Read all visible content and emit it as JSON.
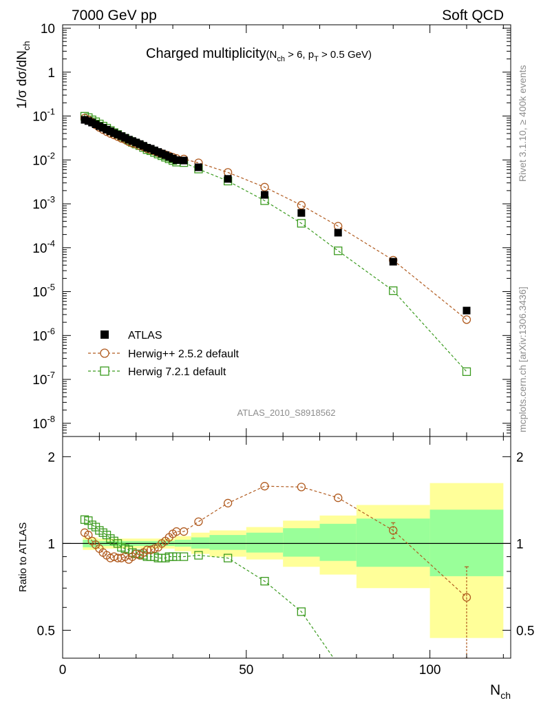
{
  "header": {
    "left_label": "7000 GeV pp",
    "right_label": "Soft QCD",
    "analysis_tag": "ATLAS_2010_S8918562",
    "side_text_top": "Rivet 3.1.10, ≥ 400k events",
    "side_text_bottom": "mcplots.cern.ch [arXiv:1306.3436]"
  },
  "chart_data": [
    {
      "type": "scatter",
      "title_main": "Charged multiplicity",
      "title_cut": "(N",
      "title_cut_sub": "ch",
      "title_cut_rest": " > 6, p",
      "title_cut_sub2": "T",
      "title_cut_end": " > 0.5 GeV)",
      "ylabel": "1/σ dσ/dN",
      "ylabel_sub": "ch",
      "yscale": "log",
      "ylim": [
        5e-09,
        12
      ],
      "xlim": [
        0,
        122
      ],
      "y_ticks": [
        {
          "base": "10",
          "exp": "-8",
          "value": 1e-08
        },
        {
          "base": "10",
          "exp": "-7",
          "value": 1e-07
        },
        {
          "base": "10",
          "exp": "-6",
          "value": 1e-06
        },
        {
          "base": "10",
          "exp": "-5",
          "value": 1e-05
        },
        {
          "base": "10",
          "exp": "-4",
          "value": 0.0001
        },
        {
          "base": "10",
          "exp": "-3",
          "value": 0.001
        },
        {
          "base": "10",
          "exp": "-2",
          "value": 0.01
        },
        {
          "base": "10",
          "exp": "-1",
          "value": 0.1
        },
        {
          "base": "1",
          "exp": "",
          "value": 1
        },
        {
          "base": "10",
          "exp": "",
          "value": 10
        }
      ],
      "legend_position": "lower-left",
      "series": [
        {
          "name": "ATLAS",
          "marker": "filled-square",
          "color": "#000000",
          "x": [
            6,
            7,
            8,
            9,
            10,
            11,
            12,
            13,
            14,
            15,
            16,
            17,
            18,
            19,
            20,
            21,
            22,
            23,
            24,
            25,
            26,
            27,
            28,
            29,
            30,
            31,
            33,
            37,
            45,
            55,
            65,
            75,
            90,
            110
          ],
          "y": [
            0.082,
            0.077,
            0.071,
            0.065,
            0.059,
            0.054,
            0.049,
            0.045,
            0.041,
            0.038,
            0.035,
            0.032,
            0.029,
            0.027,
            0.025,
            0.023,
            0.021,
            0.019,
            0.018,
            0.0165,
            0.0152,
            0.014,
            0.0129,
            0.0118,
            0.0108,
            0.0099,
            0.0097,
            0.0068,
            0.0037,
            0.0016,
            0.00062,
            0.00022,
            4.8e-05,
            3.7e-06
          ]
        },
        {
          "name": "Herwig++ 2.5.2 default",
          "marker": "open-circle",
          "color": "#b05a1e",
          "x": [
            6,
            7,
            8,
            9,
            10,
            11,
            12,
            13,
            14,
            15,
            16,
            17,
            18,
            19,
            20,
            21,
            22,
            23,
            24,
            25,
            26,
            27,
            28,
            29,
            30,
            31,
            33,
            37,
            45,
            55,
            65,
            75,
            90,
            110
          ],
          "y": [
            0.09,
            0.082,
            0.072,
            0.063,
            0.055,
            0.049,
            0.044,
            0.04,
            0.037,
            0.034,
            0.031,
            0.029,
            0.026,
            0.024,
            0.023,
            0.021,
            0.02,
            0.018,
            0.017,
            0.016,
            0.0148,
            0.014,
            0.0131,
            0.0123,
            0.0115,
            0.0108,
            0.0105,
            0.0086,
            0.0052,
            0.0024,
            0.00093,
            0.00031,
            5.2e-05,
            2.3e-06
          ]
        },
        {
          "name": "Herwig 7.2.1 default",
          "marker": "open-square",
          "color": "#3a9a1e",
          "x": [
            6,
            7,
            8,
            9,
            10,
            11,
            12,
            13,
            14,
            15,
            16,
            17,
            18,
            19,
            20,
            21,
            22,
            23,
            24,
            25,
            26,
            27,
            28,
            29,
            30,
            31,
            33,
            37,
            45,
            55,
            65,
            75,
            90,
            110
          ],
          "y": [
            0.099,
            0.092,
            0.082,
            0.074,
            0.066,
            0.059,
            0.053,
            0.047,
            0.042,
            0.038,
            0.034,
            0.031,
            0.028,
            0.025,
            0.023,
            0.0212,
            0.0192,
            0.0172,
            0.0162,
            0.0148,
            0.0136,
            0.0125,
            0.0115,
            0.0106,
            0.0097,
            0.0089,
            0.0087,
            0.0062,
            0.0033,
            0.00118,
            0.00036,
            8.5e-05,
            1.05e-05,
            1.5e-07
          ]
        }
      ]
    },
    {
      "type": "scatter",
      "ylabel": "Ratio to ATLAS",
      "yscale": "log",
      "ylim": [
        0.4,
        2.35
      ],
      "xlim": [
        0,
        122
      ],
      "xlabel": "N",
      "xlabel_sub": "ch",
      "x_ticks": [
        {
          "label": "0",
          "value": 0
        },
        {
          "label": "50",
          "value": 50
        },
        {
          "label": "100",
          "value": 100
        }
      ],
      "y_ticks": [
        {
          "label": "0.5",
          "value": 0.5
        },
        {
          "label": "1",
          "value": 1
        },
        {
          "label": "2",
          "value": 2
        }
      ],
      "uncertainty_bands": [
        {
          "x0": 5.5,
          "x1": 9.5,
          "inner": [
            0.97,
            1.03
          ],
          "outer": [
            0.95,
            1.05
          ]
        },
        {
          "x0": 9.5,
          "x1": 30.5,
          "inner": [
            0.98,
            1.02
          ],
          "outer": [
            0.96,
            1.04
          ]
        },
        {
          "x0": 30.5,
          "x1": 35,
          "inner": [
            0.975,
            1.03
          ],
          "outer": [
            0.94,
            1.06
          ]
        },
        {
          "x0": 35,
          "x1": 40,
          "inner": [
            0.96,
            1.05
          ],
          "outer": [
            0.92,
            1.09
          ]
        },
        {
          "x0": 40,
          "x1": 50,
          "inner": [
            0.95,
            1.07
          ],
          "outer": [
            0.9,
            1.11
          ]
        },
        {
          "x0": 50,
          "x1": 60,
          "inner": [
            0.93,
            1.09
          ],
          "outer": [
            0.88,
            1.14
          ]
        },
        {
          "x0": 60,
          "x1": 70,
          "inner": [
            0.9,
            1.13
          ],
          "outer": [
            0.83,
            1.2
          ]
        },
        {
          "x0": 70,
          "x1": 80,
          "inner": [
            0.87,
            1.17
          ],
          "outer": [
            0.78,
            1.25
          ]
        },
        {
          "x0": 80,
          "x1": 100,
          "inner": [
            0.83,
            1.22
          ],
          "outer": [
            0.7,
            1.36
          ]
        },
        {
          "x0": 100,
          "x1": 120,
          "inner": [
            0.77,
            1.31
          ],
          "outer": [
            0.47,
            1.62
          ]
        }
      ],
      "series": [
        {
          "name": "Herwig++ 2.5.2 default",
          "marker": "open-circle",
          "color": "#b05a1e",
          "x": [
            6,
            7,
            8,
            9,
            10,
            11,
            12,
            13,
            14,
            15,
            16,
            17,
            18,
            19,
            20,
            21,
            22,
            23,
            24,
            25,
            26,
            27,
            28,
            29,
            30,
            31,
            33,
            37,
            45,
            55,
            65,
            75,
            90,
            110
          ],
          "y": [
            1.09,
            1.07,
            1.02,
            0.99,
            0.96,
            0.93,
            0.91,
            0.89,
            0.9,
            0.89,
            0.89,
            0.9,
            0.88,
            0.9,
            0.92,
            0.91,
            0.93,
            0.95,
            0.95,
            0.96,
            0.97,
            1.0,
            1.02,
            1.05,
            1.08,
            1.1,
            1.1,
            1.19,
            1.38,
            1.58,
            1.57,
            1.44,
            1.11,
            0.65
          ],
          "errors": {
            "x": [
              90,
              110
            ],
            "lo": [
              1.04,
              0.4
            ],
            "hi": [
              1.18,
              0.83
            ]
          }
        },
        {
          "name": "Herwig 7.2.1 default",
          "marker": "open-square",
          "color": "#3a9a1e",
          "x": [
            6,
            7,
            8,
            9,
            10,
            11,
            12,
            13,
            14,
            15,
            16,
            17,
            18,
            19,
            20,
            21,
            22,
            23,
            24,
            25,
            26,
            27,
            28,
            29,
            30,
            31,
            33,
            37,
            45,
            55,
            65,
            75
          ],
          "y": [
            1.21,
            1.2,
            1.16,
            1.14,
            1.11,
            1.09,
            1.07,
            1.04,
            1.02,
            1.0,
            0.97,
            0.96,
            0.95,
            0.93,
            0.92,
            0.92,
            0.91,
            0.9,
            0.9,
            0.9,
            0.89,
            0.89,
            0.89,
            0.9,
            0.9,
            0.9,
            0.9,
            0.91,
            0.89,
            0.74,
            0.58,
            0.38
          ]
        }
      ]
    }
  ]
}
